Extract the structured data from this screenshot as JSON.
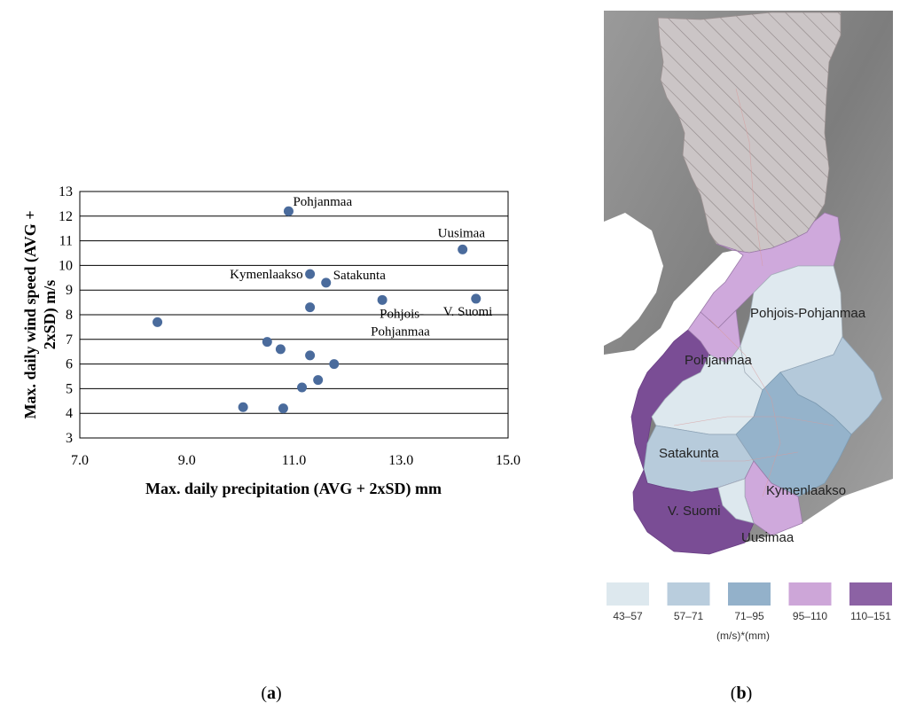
{
  "chart_data": [
    {
      "type": "scatter",
      "xlabel": "Max. daily precipitation (AVG + 2xSD) mm",
      "ylabel": "Max. daily wind speed (AVG + 2xSD) m/s",
      "xlim": [
        7.0,
        15.0
      ],
      "ylim": [
        3,
        13
      ],
      "x_ticks": [
        "7.0",
        "9.0",
        "11.0",
        "13.0",
        "15.0"
      ],
      "y_ticks": [
        "3",
        "4",
        "5",
        "6",
        "7",
        "8",
        "9",
        "10",
        "11",
        "12",
        "13"
      ],
      "grid": "horizontal",
      "color": "#4a6b9c",
      "points": [
        {
          "x": 10.9,
          "y": 12.2,
          "label": "Pohjanmaa"
        },
        {
          "x": 14.15,
          "y": 10.65,
          "label": "Uusimaa"
        },
        {
          "x": 11.3,
          "y": 9.65,
          "label": "Kymenlaakso"
        },
        {
          "x": 11.6,
          "y": 9.3,
          "label": "Satakunta"
        },
        {
          "x": 12.65,
          "y": 8.6,
          "label": "Pohjois-Pohjanmaa"
        },
        {
          "x": 14.4,
          "y": 8.65,
          "label": "V. Suomi"
        },
        {
          "x": 11.3,
          "y": 8.3,
          "label": ""
        },
        {
          "x": 8.45,
          "y": 7.7,
          "label": ""
        },
        {
          "x": 10.5,
          "y": 6.9,
          "label": ""
        },
        {
          "x": 10.75,
          "y": 6.6,
          "label": ""
        },
        {
          "x": 11.3,
          "y": 6.35,
          "label": ""
        },
        {
          "x": 11.75,
          "y": 6.0,
          "label": ""
        },
        {
          "x": 11.45,
          "y": 5.35,
          "label": ""
        },
        {
          "x": 11.15,
          "y": 5.05,
          "label": ""
        },
        {
          "x": 10.05,
          "y": 4.25,
          "label": ""
        },
        {
          "x": 10.8,
          "y": 4.2,
          "label": ""
        }
      ]
    }
  ],
  "figure": {
    "panel_a_label": "(a)",
    "panel_b_label": "(b)",
    "panel_a_letter": "a",
    "panel_b_letter": "b"
  },
  "map": {
    "region_labels": {
      "pohjois_pohjanmaa": "Pohjois-Pohjanmaa",
      "pohjanmaa": "Pohjanmaa",
      "satakunta": "Satakunta",
      "kymenlaakso": "Kymenlaakso",
      "v_suomi": "V. Suomi",
      "uusimaa": "Uusimaa"
    },
    "legend": {
      "unit": "(m/s)*(mm)",
      "classes": [
        {
          "range": "43–57",
          "color": "#dde8ee"
        },
        {
          "range": "57–71",
          "color": "#b9cddd"
        },
        {
          "range": "71–95",
          "color": "#93b1ca"
        },
        {
          "range": "95–110",
          "color": "#cda6d8"
        },
        {
          "range": "110–151",
          "color": "#8c62a4"
        }
      ]
    },
    "colors": {
      "terrain": "#8a8a8a",
      "north_hatched": "#c9c4c4",
      "sea": "#ffffff"
    }
  }
}
